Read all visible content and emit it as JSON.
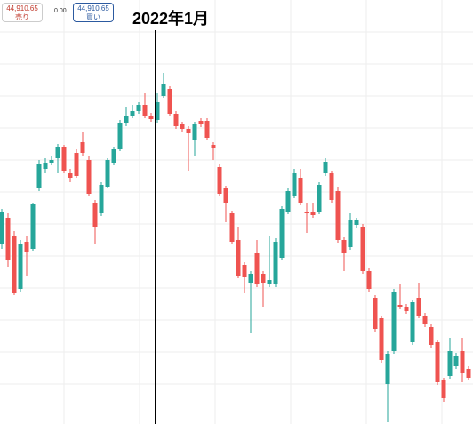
{
  "chart_data": {
    "type": "candlestick",
    "annotation": "2022年1月",
    "bid": {
      "price": "44,910.65",
      "label": "売り"
    },
    "spread": "0.00",
    "ask": {
      "price": "44,910.65",
      "label": "買い"
    },
    "ylim": [
      0,
      477
    ],
    "up_color": "#26a69a",
    "down_color": "#ef5350",
    "grid": true,
    "open": [
      202,
      232,
      212,
      152,
      205,
      197,
      265,
      287,
      294,
      299,
      312,
      282,
      305,
      317,
      297,
      249,
      237,
      267,
      294,
      309,
      339,
      347,
      352,
      359,
      347,
      342,
      369,
      377,
      349,
      337,
      332,
      319,
      341,
      341,
      314,
      289,
      265,
      237,
      207,
      179,
      159,
      192,
      169,
      157,
      157,
      187,
      239,
      257,
      277,
      239,
      239,
      239,
      282,
      282,
      262,
      207,
      199,
      224,
      222,
      172,
      142,
      119,
      45,
      82,
      134,
      132,
      92,
      142,
      122,
      109,
      92,
      49,
      54,
      65,
      82,
      62
    ],
    "high": [
      242,
      237,
      217,
      207,
      212,
      249,
      297,
      299,
      302,
      315,
      314,
      287,
      309,
      329,
      301,
      252,
      272,
      299,
      312,
      342,
      357,
      359,
      362,
      372,
      350,
      372,
      395,
      380,
      352,
      340,
      335,
      340,
      344,
      344,
      317,
      292,
      268,
      240,
      222,
      182,
      172,
      207,
      172,
      212,
      209,
      245,
      265,
      287,
      287,
      249,
      249,
      272,
      299,
      285,
      267,
      210,
      237,
      232,
      225,
      175,
      145,
      122,
      82,
      152,
      157,
      135,
      140,
      159,
      125,
      112,
      95,
      52,
      97,
      80,
      97,
      65
    ],
    "low": [
      197,
      177,
      145,
      149,
      167,
      195,
      262,
      282,
      291,
      282,
      282,
      272,
      277,
      302,
      257,
      202,
      234,
      265,
      291,
      307,
      335,
      344,
      349,
      344,
      340,
      339,
      367,
      346,
      332,
      329,
      285,
      302,
      334,
      319,
      297,
      256,
      227,
      202,
      164,
      147,
      102,
      154,
      132,
      154,
      154,
      184,
      236,
      254,
      246,
      215,
      232,
      236,
      279,
      249,
      204,
      172,
      196,
      221,
      169,
      149,
      104,
      69,
      2,
      79,
      129,
      124,
      89,
      119,
      109,
      86,
      44,
      25,
      51,
      62,
      47,
      49
    ],
    "close": [
      239,
      185,
      147,
      202,
      194,
      247,
      292,
      294,
      297,
      312,
      285,
      277,
      279,
      305,
      259,
      222,
      269,
      297,
      309,
      339,
      347,
      352,
      359,
      347,
      343,
      362,
      382,
      349,
      335,
      332,
      327,
      337,
      337,
      322,
      311,
      259,
      249,
      205,
      167,
      165,
      169,
      157,
      159,
      162,
      205,
      242,
      262,
      282,
      249,
      237,
      235,
      269,
      295,
      252,
      207,
      192,
      229,
      229,
      172,
      152,
      107,
      72,
      79,
      149,
      132,
      127,
      137,
      122,
      112,
      89,
      47,
      29,
      82,
      77,
      57,
      52
    ]
  }
}
